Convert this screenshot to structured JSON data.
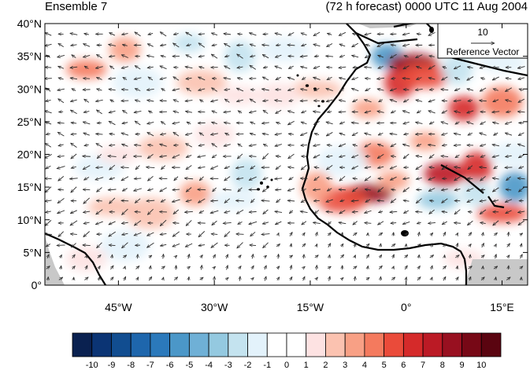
{
  "title_left": "Ensemble 7",
  "title_right": "(72 h forecast) 0000 UTC 11 Aug 2004",
  "map": {
    "lon_range": [
      -56.5,
      19
    ],
    "lat_range": [
      0,
      40
    ],
    "lat_ticks": [
      "0°",
      "5°N",
      "10°N",
      "15°N",
      "20°N",
      "25°N",
      "30°N",
      "35°N",
      "40°N"
    ],
    "lon_ticks": [
      "45°W",
      "30°W",
      "15°W",
      "0°",
      "15°E"
    ],
    "lon_tick_values": [
      -45,
      -30,
      -15,
      0,
      15
    ],
    "lat_tick_values": [
      0,
      5,
      10,
      15,
      20,
      25,
      30,
      35,
      40
    ]
  },
  "reference_vector": {
    "magnitude": "10",
    "label": "Reference Vector"
  },
  "colorbar": {
    "labels": [
      "-10",
      "-9",
      "-8",
      "-7",
      "-6",
      "-5",
      "-4",
      "-3",
      "-2",
      "-1",
      "0",
      "1",
      "2",
      "3",
      "4",
      "5",
      "6",
      "7",
      "8",
      "9",
      "10"
    ],
    "colors": [
      "#0a2150",
      "#0b3474",
      "#114d90",
      "#1e66ac",
      "#2b79bb",
      "#4b97c8",
      "#6fb0d6",
      "#94c9e0",
      "#c4e3ef",
      "#e3f2fb",
      "#ffffff",
      "#ffffff",
      "#fde2e2",
      "#fbc2b0",
      "#f8a085",
      "#f47a5e",
      "#ea4b3a",
      "#d52a2a",
      "#bb1a25",
      "#981020",
      "#770816",
      "#5a0410"
    ]
  },
  "colors": {
    "land_outline": "#000000",
    "missing": "#c8c8c8",
    "arrow": "#2b2b2b"
  },
  "chart_data": {
    "type": "map",
    "description": "Ensemble member 7 wind difference vectors with shaded anomaly field over the eastern tropical Atlantic and West Africa",
    "shading_levels": [
      -10,
      -9,
      -8,
      -7,
      -6,
      -5,
      -4,
      -3,
      -2,
      -1,
      0,
      1,
      2,
      3,
      4,
      5,
      6,
      7,
      8,
      9,
      10
    ],
    "anomaly_blobs": [
      {
        "lon": -50,
        "lat": 33,
        "value": 4
      },
      {
        "lon": -44,
        "lat": 36,
        "value": 3
      },
      {
        "lon": -42,
        "lat": 31,
        "value": -2
      },
      {
        "lon": -34,
        "lat": 37,
        "value": -3
      },
      {
        "lon": -32,
        "lat": 31,
        "value": 2
      },
      {
        "lon": -26,
        "lat": 35,
        "value": -3
      },
      {
        "lon": -26,
        "lat": 29,
        "value": 1
      },
      {
        "lon": -19,
        "lat": 36,
        "value": -2
      },
      {
        "lon": -12,
        "lat": 33,
        "value": -1
      },
      {
        "lon": -6,
        "lat": 27,
        "value": 3
      },
      {
        "lon": -3,
        "lat": 35,
        "value": -6
      },
      {
        "lon": -1,
        "lat": 31,
        "value": 6
      },
      {
        "lon": 1,
        "lat": 34,
        "value": 8
      },
      {
        "lon": 3,
        "lat": 32,
        "value": 5
      },
      {
        "lon": 8,
        "lat": 33,
        "value": -3
      },
      {
        "lon": 15,
        "lat": 34,
        "value": -2
      },
      {
        "lon": 9,
        "lat": 27,
        "value": 6
      },
      {
        "lon": 15,
        "lat": 28,
        "value": 4
      },
      {
        "lon": 3,
        "lat": 22,
        "value": 3
      },
      {
        "lon": -5,
        "lat": 20,
        "value": 4
      },
      {
        "lon": -10,
        "lat": 19,
        "value": -2
      },
      {
        "lon": -6,
        "lat": 14,
        "value": 8
      },
      {
        "lon": -10,
        "lat": 13,
        "value": 5
      },
      {
        "lon": -14,
        "lat": 15,
        "value": 3
      },
      {
        "lon": -2,
        "lat": 16,
        "value": 3
      },
      {
        "lon": 6,
        "lat": 17,
        "value": 7
      },
      {
        "lon": 11,
        "lat": 18,
        "value": 6
      },
      {
        "lon": 5,
        "lat": 13,
        "value": -4
      },
      {
        "lon": 11,
        "lat": 14,
        "value": -3
      },
      {
        "lon": 17,
        "lat": 15,
        "value": -6
      },
      {
        "lon": 15,
        "lat": 11,
        "value": 5
      },
      {
        "lon": 17,
        "lat": 20,
        "value": -2
      },
      {
        "lon": -25,
        "lat": 17,
        "value": -3
      },
      {
        "lon": -27,
        "lat": 13,
        "value": -2
      },
      {
        "lon": -33,
        "lat": 14,
        "value": 3
      },
      {
        "lon": -40,
        "lat": 11,
        "value": 2
      },
      {
        "lon": -46,
        "lat": 12,
        "value": 2
      },
      {
        "lon": -48,
        "lat": 18,
        "value": -2
      },
      {
        "lon": -52,
        "lat": 14,
        "value": -1
      },
      {
        "lon": -45,
        "lat": 20,
        "value": 1
      },
      {
        "lon": -38,
        "lat": 21,
        "value": 2
      },
      {
        "lon": -52,
        "lat": 24,
        "value": -1
      },
      {
        "lon": -36,
        "lat": 26,
        "value": -1
      },
      {
        "lon": -30,
        "lat": 23,
        "value": 1
      },
      {
        "lon": -44,
        "lat": 6,
        "value": -2
      },
      {
        "lon": -35,
        "lat": 5,
        "value": -1
      },
      {
        "lon": -27,
        "lat": 5,
        "value": -1
      },
      {
        "lon": -20,
        "lat": 7,
        "value": -1
      },
      {
        "lon": -14,
        "lat": 4,
        "value": -1
      },
      {
        "lon": -5,
        "lat": 4,
        "value": -1
      },
      {
        "lon": 3,
        "lat": 3,
        "value": -1
      },
      {
        "lon": 9,
        "lat": 4,
        "value": 1
      },
      {
        "lon": -50,
        "lat": 4,
        "value": 1
      },
      {
        "lon": -18,
        "lat": 24,
        "value": -1
      },
      {
        "lon": -14,
        "lat": 30,
        "value": 2
      },
      {
        "lon": -20,
        "lat": 29,
        "value": 1
      }
    ],
    "wind_field_regions": [
      {
        "lon_range": [
          -57,
          -20
        ],
        "lat_range": [
          20,
          40
        ],
        "direction_deg_from_east": 170,
        "speed": 8
      },
      {
        "lon_range": [
          -57,
          -20
        ],
        "lat_range": [
          5,
          20
        ],
        "direction_deg_from_east": 200,
        "speed": 9
      },
      {
        "lon_range": [
          -20,
          19
        ],
        "lat_range": [
          20,
          40
        ],
        "direction_deg_from_east": 185,
        "speed": 8
      },
      {
        "lon_range": [
          -20,
          19
        ],
        "lat_range": [
          8,
          20
        ],
        "direction_deg_from_east": 195,
        "speed": 8
      },
      {
        "lon_range": [
          -57,
          19
        ],
        "lat_range": [
          0,
          8
        ],
        "direction_deg_from_east": 60,
        "speed": 5
      }
    ]
  }
}
